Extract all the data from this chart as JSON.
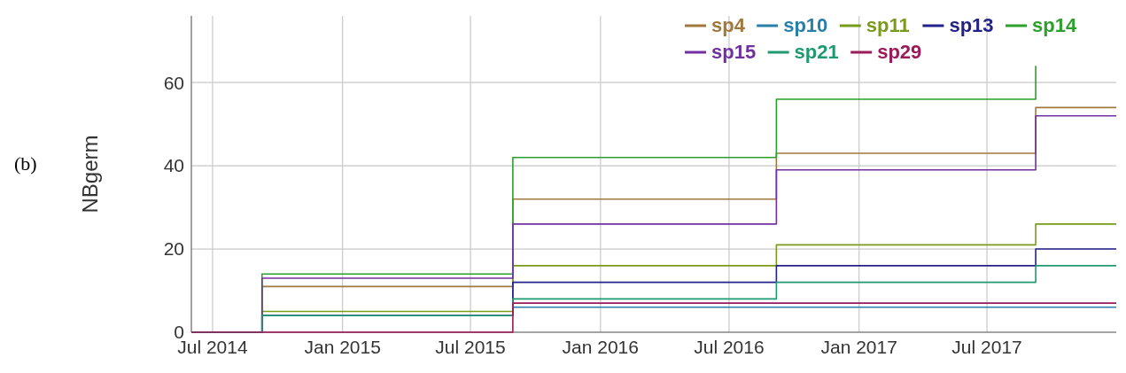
{
  "chart_data": {
    "type": "step",
    "ylabel": "NBgerm",
    "annotations": [
      "(b)"
    ],
    "xlim": [
      "2014-06-01",
      "2017-12-31"
    ],
    "ylim": [
      0,
      76
    ],
    "yticks": [
      0,
      20,
      40,
      60
    ],
    "xticks": [
      {
        "value": "2014-07-01",
        "label": "Jul 2014"
      },
      {
        "value": "2015-01-01",
        "label": "Jan 2015"
      },
      {
        "value": "2015-07-01",
        "label": "Jul 2015"
      },
      {
        "value": "2016-01-01",
        "label": "Jan 2016"
      },
      {
        "value": "2016-07-01",
        "label": "Jul 2016"
      },
      {
        "value": "2017-01-01",
        "label": "Jan 2017"
      },
      {
        "value": "2017-07-01",
        "label": "Jul 2017"
      }
    ],
    "grid": true,
    "legend": "top right",
    "line_style": "solid",
    "marker": "none",
    "x": [
      "2014-06-01",
      "2014-09-09",
      "2015-08-30",
      "2016-09-06",
      "2017-09-08",
      "2017-12-31"
    ],
    "series": [
      {
        "name": "sp4",
        "color": "#a0783c",
        "values": [
          0,
          11,
          32,
          43,
          54,
          54
        ]
      },
      {
        "name": "sp10",
        "color": "#2a7fa8",
        "values": [
          0,
          4,
          6,
          6,
          6,
          6
        ]
      },
      {
        "name": "sp11",
        "color": "#7a9a1a",
        "values": [
          0,
          5,
          16,
          21,
          26,
          26
        ]
      },
      {
        "name": "sp13",
        "color": "#22228a",
        "values": [
          0,
          4,
          12,
          16,
          20,
          20
        ]
      },
      {
        "name": "sp14",
        "color": "#2ca02c",
        "values": [
          0,
          14,
          42,
          56,
          64,
          null
        ]
      },
      {
        "name": "sp15",
        "color": "#7030a0",
        "values": [
          0,
          13,
          26,
          39,
          52,
          52
        ]
      },
      {
        "name": "sp21",
        "color": "#1f9a70",
        "values": [
          0,
          4,
          8,
          12,
          16,
          16
        ]
      },
      {
        "name": "sp29",
        "color": "#9a1a5a",
        "values": [
          0,
          0,
          7,
          7,
          7,
          7
        ]
      }
    ]
  }
}
